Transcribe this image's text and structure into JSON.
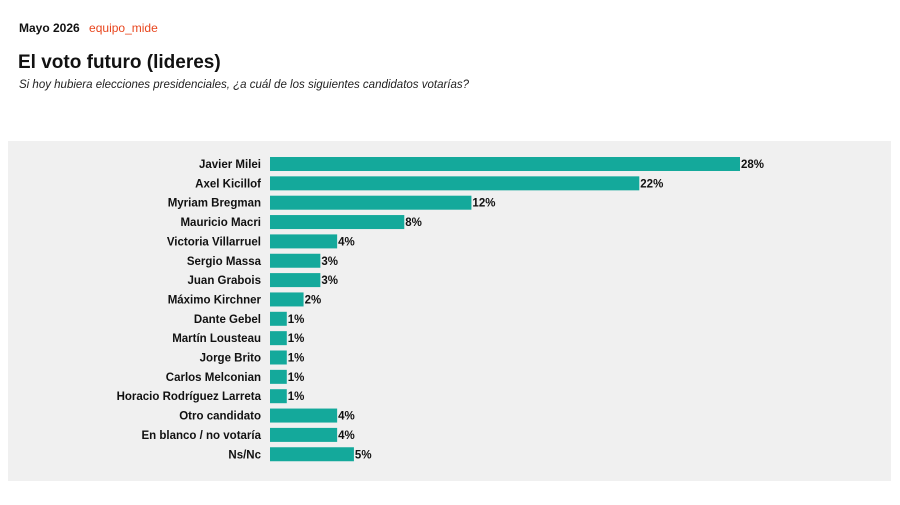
{
  "header": {
    "date": "Mayo 2026",
    "source": "equipo_mide"
  },
  "colors": {
    "bar": "#14a99b",
    "panel": "#f0f0f0",
    "source": "#e8461e"
  },
  "chart_data": {
    "type": "bar",
    "orientation": "horizontal",
    "title": "El voto futuro (lideres)",
    "subtitle": "Si hoy hubiera elecciones presidenciales, ¿a cuál de los siguientes candidatos votarías?",
    "xlabel": "",
    "ylabel": "",
    "xlim": [
      0,
      28
    ],
    "grid": false,
    "legend": "none",
    "value_suffix": "%",
    "categories": [
      "Javier Milei",
      "Axel Kicillof",
      "Myriam Bregman",
      "Mauricio Macri",
      "Victoria Villarruel",
      "Sergio Massa",
      "Juan Grabois",
      "Máximo Kirchner",
      "Dante Gebel",
      "Martín Lousteau",
      "Jorge Brito",
      "Carlos Melconian",
      "Horacio Rodríguez Larreta",
      "Otro candidato",
      "En blanco / no votaría",
      "Ns/Nc"
    ],
    "values": [
      28,
      22,
      12,
      8,
      4,
      3,
      3,
      2,
      1,
      1,
      1,
      1,
      1,
      4,
      4,
      5
    ],
    "value_labels": [
      "28%",
      "22%",
      "12%",
      "8%",
      "4%",
      "3%",
      "3%",
      "2%",
      "1%",
      "1%",
      "1%",
      "1%",
      "1%",
      "4%",
      "4%",
      "5%"
    ]
  }
}
